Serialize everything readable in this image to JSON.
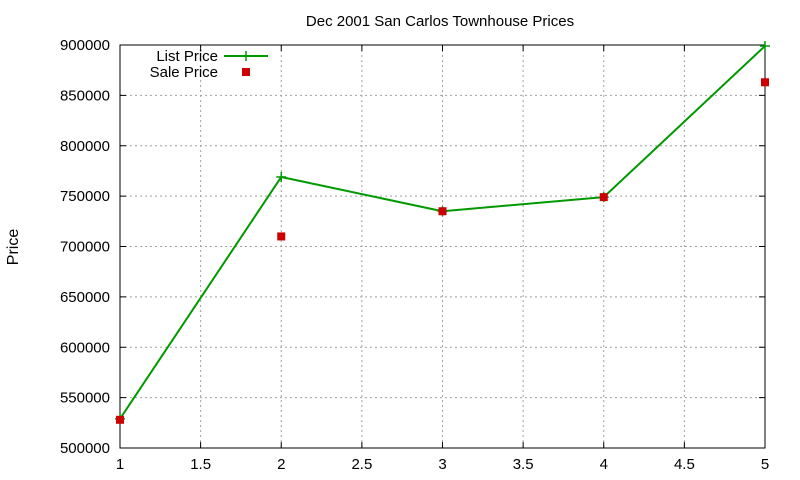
{
  "chart_data": {
    "type": "line",
    "title": "Dec 2001 San Carlos Townhouse Prices",
    "xlabel": "",
    "ylabel": "Price",
    "xlim": [
      1,
      5
    ],
    "ylim": [
      500000,
      900000
    ],
    "x_ticks": [
      "1",
      "1.5",
      "2",
      "2.5",
      "3",
      "3.5",
      "4",
      "4.5",
      "5"
    ],
    "y_ticks": [
      "500000",
      "550000",
      "600000",
      "650000",
      "700000",
      "750000",
      "800000",
      "850000",
      "900000"
    ],
    "grid": true,
    "legend_position": "top-left",
    "series": [
      {
        "name": "List Price",
        "style": "linespoints",
        "marker": "plus",
        "color": "#009900",
        "x": [
          1,
          2,
          3,
          4,
          5
        ],
        "y": [
          529000,
          769000,
          735000,
          749000,
          899000
        ]
      },
      {
        "name": "Sale Price",
        "style": "points",
        "marker": "square",
        "color": "#cc0000",
        "x": [
          1,
          2,
          3,
          4,
          5
        ],
        "y": [
          528000,
          710000,
          735000,
          749000,
          863000
        ]
      }
    ]
  }
}
